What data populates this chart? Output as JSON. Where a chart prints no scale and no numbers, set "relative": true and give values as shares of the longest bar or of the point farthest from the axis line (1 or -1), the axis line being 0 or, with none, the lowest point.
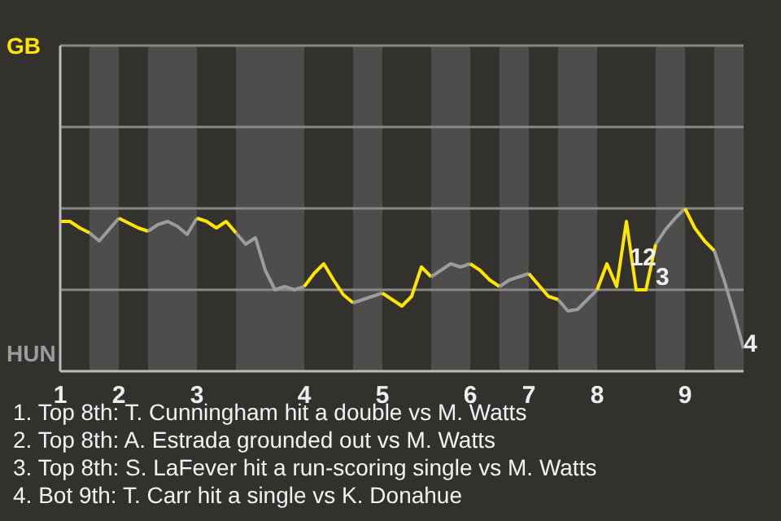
{
  "chart_data": {
    "type": "line",
    "relative": true,
    "categories": [
      "1",
      null,
      null,
      null,
      null,
      null,
      "2",
      null,
      null,
      null,
      null,
      null,
      null,
      null,
      "3",
      null,
      null,
      null,
      null,
      null,
      null,
      null,
      null,
      null,
      null,
      "4",
      null,
      null,
      null,
      null,
      null,
      null,
      null,
      "5",
      null,
      null,
      null,
      null,
      null,
      null,
      null,
      null,
      "6",
      null,
      null,
      null,
      null,
      null,
      "7",
      null,
      null,
      null,
      null,
      null,
      null,
      "8",
      null,
      null,
      null,
      null,
      null,
      null,
      null,
      null,
      "9",
      null,
      null,
      null,
      null,
      null,
      null
    ],
    "ref_lines": [
      {
        "axis": "y",
        "value": 0.5,
        "color": "#8a8887"
      },
      {
        "axis": "y",
        "value": 1,
        "color": "#8a8887"
      },
      {
        "axis": "y",
        "value": 1.5,
        "color": "#8a8887"
      }
    ],
    "marker": "none",
    "line_style": "solid",
    "series": [
      {
        "color": "#ffe500",
        "values": [
          0.92,
          0.92,
          0.88,
          0.85,
          null,
          null,
          null,
          null,
          null,
          null,
          null,
          null,
          null,
          null,
          null,
          null,
          null,
          null,
          null,
          null,
          null,
          null,
          null,
          null,
          null,
          null,
          null,
          null,
          null,
          null,
          null,
          null,
          null,
          null,
          null,
          null,
          null,
          null,
          null,
          null,
          null,
          null,
          null,
          null,
          null,
          null,
          null,
          null,
          null,
          null,
          null,
          null,
          null,
          null,
          null,
          null,
          null,
          null,
          null,
          null,
          null,
          null,
          null,
          null,
          null,
          null,
          null,
          null,
          null,
          null,
          null
        ]
      },
      {
        "color": "#9a9c9e",
        "values": [
          null,
          null,
          null,
          0.85,
          0.8,
          0.87,
          0.94,
          null,
          null,
          null,
          null,
          null,
          null,
          null,
          null,
          null,
          null,
          null,
          null,
          null,
          null,
          null,
          null,
          null,
          null,
          null,
          null,
          null,
          null,
          null,
          null,
          null,
          null,
          null,
          null,
          null,
          null,
          null,
          null,
          null,
          null,
          null,
          null,
          null,
          null,
          null,
          null,
          null,
          null,
          null,
          null,
          null,
          null,
          null,
          null,
          null,
          null,
          null,
          null,
          null,
          null,
          null,
          null,
          null,
          null,
          null,
          null,
          null,
          null,
          null,
          null
        ]
      },
      {
        "color": "#ffe500",
        "values": [
          null,
          null,
          null,
          null,
          null,
          null,
          0.94,
          0.91,
          0.88,
          0.86,
          null,
          null,
          null,
          null,
          null,
          null,
          null,
          null,
          null,
          null,
          null,
          null,
          null,
          null,
          null,
          null,
          null,
          null,
          null,
          null,
          null,
          null,
          null,
          null,
          null,
          null,
          null,
          null,
          null,
          null,
          null,
          null,
          null,
          null,
          null,
          null,
          null,
          null,
          null,
          null,
          null,
          null,
          null,
          null,
          null,
          null,
          null,
          null,
          null,
          null,
          null,
          null,
          null,
          null,
          null,
          null,
          null,
          null,
          null,
          null,
          null
        ]
      },
      {
        "color": "#9a9c9e",
        "values": [
          null,
          null,
          null,
          null,
          null,
          null,
          null,
          null,
          null,
          0.86,
          0.9,
          0.92,
          0.89,
          0.84,
          0.94,
          null,
          null,
          null,
          null,
          null,
          null,
          null,
          null,
          null,
          null,
          null,
          null,
          null,
          null,
          null,
          null,
          null,
          null,
          null,
          null,
          null,
          null,
          null,
          null,
          null,
          null,
          null,
          null,
          null,
          null,
          null,
          null,
          null,
          null,
          null,
          null,
          null,
          null,
          null,
          null,
          null,
          null,
          null,
          null,
          null,
          null,
          null,
          null,
          null,
          null,
          null,
          null,
          null,
          null,
          null,
          null
        ]
      },
      {
        "color": "#ffe500",
        "values": [
          null,
          null,
          null,
          null,
          null,
          null,
          null,
          null,
          null,
          null,
          null,
          null,
          null,
          null,
          0.94,
          0.92,
          0.88,
          0.92,
          0.85,
          null,
          null,
          null,
          null,
          null,
          null,
          null,
          null,
          null,
          null,
          null,
          null,
          null,
          null,
          null,
          null,
          null,
          null,
          null,
          null,
          null,
          null,
          null,
          null,
          null,
          null,
          null,
          null,
          null,
          null,
          null,
          null,
          null,
          null,
          null,
          null,
          null,
          null,
          null,
          null,
          null,
          null,
          null,
          null,
          null,
          null,
          null,
          null,
          null,
          null,
          null,
          null
        ]
      },
      {
        "color": "#9a9c9e",
        "values": [
          null,
          null,
          null,
          null,
          null,
          null,
          null,
          null,
          null,
          null,
          null,
          null,
          null,
          null,
          null,
          null,
          null,
          null,
          0.85,
          0.78,
          0.82,
          0.62,
          0.5,
          0.52,
          0.5,
          0.52,
          null,
          null,
          null,
          null,
          null,
          null,
          null,
          null,
          null,
          null,
          null,
          null,
          null,
          null,
          null,
          null,
          null,
          null,
          null,
          null,
          null,
          null,
          null,
          null,
          null,
          null,
          null,
          null,
          null,
          null,
          null,
          null,
          null,
          null,
          null,
          null,
          null,
          null,
          null,
          null,
          null,
          null,
          null,
          null,
          null
        ]
      },
      {
        "color": "#ffe500",
        "values": [
          null,
          null,
          null,
          null,
          null,
          null,
          null,
          null,
          null,
          null,
          null,
          null,
          null,
          null,
          null,
          null,
          null,
          null,
          null,
          null,
          null,
          null,
          null,
          null,
          null,
          0.52,
          0.6,
          0.66,
          0.56,
          0.47,
          0.42,
          null,
          null,
          null,
          null,
          null,
          null,
          null,
          null,
          null,
          null,
          null,
          null,
          null,
          null,
          null,
          null,
          null,
          null,
          null,
          null,
          null,
          null,
          null,
          null,
          null,
          null,
          null,
          null,
          null,
          null,
          null,
          null,
          null,
          null,
          null,
          null,
          null,
          null,
          null,
          null
        ]
      },
      {
        "color": "#9a9c9e",
        "values": [
          null,
          null,
          null,
          null,
          null,
          null,
          null,
          null,
          null,
          null,
          null,
          null,
          null,
          null,
          null,
          null,
          null,
          null,
          null,
          null,
          null,
          null,
          null,
          null,
          null,
          null,
          null,
          null,
          null,
          null,
          0.42,
          0.44,
          0.46,
          0.48,
          null,
          null,
          null,
          null,
          null,
          null,
          null,
          null,
          null,
          null,
          null,
          null,
          null,
          null,
          null,
          null,
          null,
          null,
          null,
          null,
          null,
          null,
          null,
          null,
          null,
          null,
          null,
          null,
          null,
          null,
          null,
          null,
          null,
          null,
          null,
          null,
          null
        ]
      },
      {
        "color": "#ffe500",
        "values": [
          null,
          null,
          null,
          null,
          null,
          null,
          null,
          null,
          null,
          null,
          null,
          null,
          null,
          null,
          null,
          null,
          null,
          null,
          null,
          null,
          null,
          null,
          null,
          null,
          null,
          null,
          null,
          null,
          null,
          null,
          null,
          null,
          null,
          0.48,
          0.44,
          0.4,
          0.46,
          0.64,
          0.58,
          null,
          null,
          null,
          null,
          null,
          null,
          null,
          null,
          null,
          null,
          null,
          null,
          null,
          null,
          null,
          null,
          null,
          null,
          null,
          null,
          null,
          null,
          null,
          null,
          null,
          null,
          null,
          null,
          null,
          null,
          null,
          null
        ]
      },
      {
        "color": "#9a9c9e",
        "values": [
          null,
          null,
          null,
          null,
          null,
          null,
          null,
          null,
          null,
          null,
          null,
          null,
          null,
          null,
          null,
          null,
          null,
          null,
          null,
          null,
          null,
          null,
          null,
          null,
          null,
          null,
          null,
          null,
          null,
          null,
          null,
          null,
          null,
          null,
          null,
          null,
          null,
          null,
          0.58,
          0.62,
          0.66,
          0.64,
          0.66,
          null,
          null,
          null,
          null,
          null,
          null,
          null,
          null,
          null,
          null,
          null,
          null,
          null,
          null,
          null,
          null,
          null,
          null,
          null,
          null,
          null,
          null,
          null,
          null,
          null,
          null,
          null,
          null
        ]
      },
      {
        "color": "#ffe500",
        "values": [
          null,
          null,
          null,
          null,
          null,
          null,
          null,
          null,
          null,
          null,
          null,
          null,
          null,
          null,
          null,
          null,
          null,
          null,
          null,
          null,
          null,
          null,
          null,
          null,
          null,
          null,
          null,
          null,
          null,
          null,
          null,
          null,
          null,
          null,
          null,
          null,
          null,
          null,
          null,
          null,
          null,
          null,
          0.66,
          0.62,
          0.56,
          0.52,
          null,
          null,
          null,
          null,
          null,
          null,
          null,
          null,
          null,
          null,
          null,
          null,
          null,
          null,
          null,
          null,
          null,
          null,
          null,
          null,
          null,
          null,
          null,
          null,
          null
        ]
      },
      {
        "color": "#9a9c9e",
        "values": [
          null,
          null,
          null,
          null,
          null,
          null,
          null,
          null,
          null,
          null,
          null,
          null,
          null,
          null,
          null,
          null,
          null,
          null,
          null,
          null,
          null,
          null,
          null,
          null,
          null,
          null,
          null,
          null,
          null,
          null,
          null,
          null,
          null,
          null,
          null,
          null,
          null,
          null,
          null,
          null,
          null,
          null,
          null,
          null,
          null,
          0.52,
          0.56,
          0.58,
          0.6,
          null,
          null,
          null,
          null,
          null,
          null,
          null,
          null,
          null,
          null,
          null,
          null,
          null,
          null,
          null,
          null,
          null,
          null,
          null,
          null,
          null,
          null
        ]
      },
      {
        "color": "#ffe500",
        "values": [
          null,
          null,
          null,
          null,
          null,
          null,
          null,
          null,
          null,
          null,
          null,
          null,
          null,
          null,
          null,
          null,
          null,
          null,
          null,
          null,
          null,
          null,
          null,
          null,
          null,
          null,
          null,
          null,
          null,
          null,
          null,
          null,
          null,
          null,
          null,
          null,
          null,
          null,
          null,
          null,
          null,
          null,
          null,
          null,
          null,
          null,
          null,
          null,
          0.6,
          0.53,
          0.46,
          0.44,
          null,
          null,
          null,
          null,
          null,
          null,
          null,
          null,
          null,
          null,
          null,
          null,
          null,
          null,
          null,
          null,
          null,
          null,
          null
        ]
      },
      {
        "color": "#9a9c9e",
        "values": [
          null,
          null,
          null,
          null,
          null,
          null,
          null,
          null,
          null,
          null,
          null,
          null,
          null,
          null,
          null,
          null,
          null,
          null,
          null,
          null,
          null,
          null,
          null,
          null,
          null,
          null,
          null,
          null,
          null,
          null,
          null,
          null,
          null,
          null,
          null,
          null,
          null,
          null,
          null,
          null,
          null,
          null,
          null,
          null,
          null,
          null,
          null,
          null,
          null,
          null,
          null,
          0.44,
          0.37,
          0.38,
          0.44,
          0.5,
          null,
          null,
          null,
          null,
          null,
          null,
          null,
          null,
          null,
          null,
          null,
          null,
          null,
          null,
          null
        ]
      },
      {
        "color": "#ffe500",
        "values": [
          null,
          null,
          null,
          null,
          null,
          null,
          null,
          null,
          null,
          null,
          null,
          null,
          null,
          null,
          null,
          null,
          null,
          null,
          null,
          null,
          null,
          null,
          null,
          null,
          null,
          null,
          null,
          null,
          null,
          null,
          null,
          null,
          null,
          null,
          null,
          null,
          null,
          null,
          null,
          null,
          null,
          null,
          null,
          null,
          null,
          null,
          null,
          null,
          null,
          null,
          null,
          null,
          null,
          null,
          null,
          0.5,
          0.66,
          0.52,
          0.92,
          0.5,
          0.5,
          0.78,
          null,
          null,
          null,
          null,
          null,
          null,
          null,
          null,
          null
        ]
      },
      {
        "color": "#9a9c9e",
        "values": [
          null,
          null,
          null,
          null,
          null,
          null,
          null,
          null,
          null,
          null,
          null,
          null,
          null,
          null,
          null,
          null,
          null,
          null,
          null,
          null,
          null,
          null,
          null,
          null,
          null,
          null,
          null,
          null,
          null,
          null,
          null,
          null,
          null,
          null,
          null,
          null,
          null,
          null,
          null,
          null,
          null,
          null,
          null,
          null,
          null,
          null,
          null,
          null,
          null,
          null,
          null,
          null,
          null,
          null,
          null,
          null,
          null,
          null,
          null,
          null,
          null,
          0.78,
          0.87,
          0.94,
          1,
          null,
          null,
          null,
          null,
          null,
          null
        ]
      },
      {
        "color": "#ffe500",
        "values": [
          null,
          null,
          null,
          null,
          null,
          null,
          null,
          null,
          null,
          null,
          null,
          null,
          null,
          null,
          null,
          null,
          null,
          null,
          null,
          null,
          null,
          null,
          null,
          null,
          null,
          null,
          null,
          null,
          null,
          null,
          null,
          null,
          null,
          null,
          null,
          null,
          null,
          null,
          null,
          null,
          null,
          null,
          null,
          null,
          null,
          null,
          null,
          null,
          null,
          null,
          null,
          null,
          null,
          null,
          null,
          null,
          null,
          null,
          null,
          null,
          null,
          null,
          null,
          null,
          1,
          0.88,
          0.8,
          0.74,
          null,
          null,
          null
        ]
      },
      {
        "color": "#9a9c9e",
        "values": [
          null,
          null,
          null,
          null,
          null,
          null,
          null,
          null,
          null,
          null,
          null,
          null,
          null,
          null,
          null,
          null,
          null,
          null,
          null,
          null,
          null,
          null,
          null,
          null,
          null,
          null,
          null,
          null,
          null,
          null,
          null,
          null,
          null,
          null,
          null,
          null,
          null,
          null,
          null,
          null,
          null,
          null,
          null,
          null,
          null,
          null,
          null,
          null,
          null,
          null,
          null,
          null,
          null,
          null,
          null,
          null,
          null,
          null,
          null,
          null,
          null,
          null,
          null,
          null,
          null,
          null,
          null,
          0.74,
          0.56,
          0.36,
          0.14
        ]
      }
    ],
    "annotations": [
      "GB",
      "HUN",
      "1",
      "2",
      "3",
      "4",
      "1. Top 8th: T. Cunningham hit a double vs M. Watts",
      "2. Top 8th: A. Estrada grounded out vs M. Watts",
      "3. Top 8th: S. LaFever hit a run-scoring single vs M. Watts",
      "4. Bot 9th: T. Carr hit a single vs K. Donahue"
    ]
  }
}
